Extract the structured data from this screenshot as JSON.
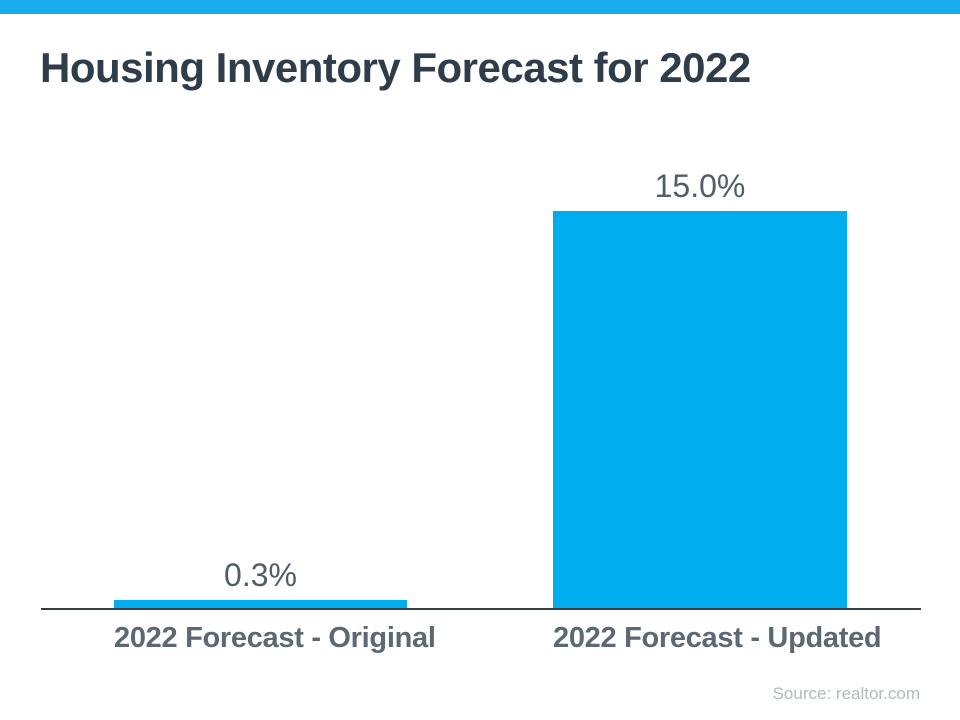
{
  "brand": {
    "accent_color": "#18acec"
  },
  "chart_data": {
    "type": "bar",
    "title": "Housing Inventory Forecast for 2022",
    "categories": [
      "2022 Forecast - Original",
      "2022 Forecast - Updated"
    ],
    "values": [
      0.3,
      15.0
    ],
    "value_labels": [
      "0.3%",
      "15.0%"
    ],
    "ylabel": "",
    "xlabel": "",
    "ylim": [
      0,
      16.5
    ],
    "grid": false,
    "legend": false,
    "bar_color": "#00aeef",
    "axis_color": "#363f46",
    "source": "Source: realtor.com"
  }
}
